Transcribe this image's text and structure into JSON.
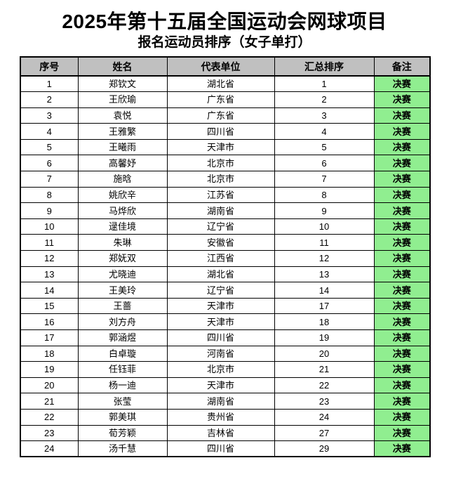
{
  "page": {
    "title": "2025年第十五届全国运动会网球项目",
    "subtitle": "报名运动员排序（女子单打）"
  },
  "table": {
    "headers": [
      "序号",
      "姓名",
      "代表单位",
      "汇总排序",
      "备注"
    ],
    "rows": [
      {
        "no": "1",
        "name": "郑钦文",
        "unit": "湖北省",
        "rank": "1",
        "remark": "决赛"
      },
      {
        "no": "2",
        "name": "王欣瑜",
        "unit": "广东省",
        "rank": "2",
        "remark": "决赛"
      },
      {
        "no": "3",
        "name": "袁悦",
        "unit": "广东省",
        "rank": "3",
        "remark": "决赛"
      },
      {
        "no": "4",
        "name": "王雅繁",
        "unit": "四川省",
        "rank": "4",
        "remark": "决赛"
      },
      {
        "no": "5",
        "name": "王曦雨",
        "unit": "天津市",
        "rank": "5",
        "remark": "决赛"
      },
      {
        "no": "6",
        "name": "高馨妤",
        "unit": "北京市",
        "rank": "6",
        "remark": "决赛"
      },
      {
        "no": "7",
        "name": "施晗",
        "unit": "北京市",
        "rank": "7",
        "remark": "决赛"
      },
      {
        "no": "8",
        "name": "姚欣辛",
        "unit": "江苏省",
        "rank": "8",
        "remark": "决赛"
      },
      {
        "no": "9",
        "name": "马烨欣",
        "unit": "湖南省",
        "rank": "9",
        "remark": "决赛"
      },
      {
        "no": "10",
        "name": "逯佳境",
        "unit": "辽宁省",
        "rank": "10",
        "remark": "决赛"
      },
      {
        "no": "11",
        "name": "朱琳",
        "unit": "安徽省",
        "rank": "11",
        "remark": "决赛"
      },
      {
        "no": "12",
        "name": "郑妩双",
        "unit": "江西省",
        "rank": "12",
        "remark": "决赛"
      },
      {
        "no": "13",
        "name": "尤晓迪",
        "unit": "湖北省",
        "rank": "13",
        "remark": "决赛"
      },
      {
        "no": "14",
        "name": "王美玲",
        "unit": "辽宁省",
        "rank": "14",
        "remark": "决赛"
      },
      {
        "no": "15",
        "name": "王蔷",
        "unit": "天津市",
        "rank": "17",
        "remark": "决赛"
      },
      {
        "no": "16",
        "name": "刘方舟",
        "unit": "天津市",
        "rank": "18",
        "remark": "决赛"
      },
      {
        "no": "17",
        "name": "郭涵煜",
        "unit": "四川省",
        "rank": "19",
        "remark": "决赛"
      },
      {
        "no": "18",
        "name": "白卓璇",
        "unit": "河南省",
        "rank": "20",
        "remark": "决赛"
      },
      {
        "no": "19",
        "name": "任钰菲",
        "unit": "北京市",
        "rank": "21",
        "remark": "决赛"
      },
      {
        "no": "20",
        "name": "杨一迪",
        "unit": "天津市",
        "rank": "22",
        "remark": "决赛"
      },
      {
        "no": "21",
        "name": "张莹",
        "unit": "湖南省",
        "rank": "23",
        "remark": "决赛"
      },
      {
        "no": "22",
        "name": "郭美琪",
        "unit": "贵州省",
        "rank": "24",
        "remark": "决赛"
      },
      {
        "no": "23",
        "name": "荀芳颖",
        "unit": "吉林省",
        "rank": "27",
        "remark": "决赛"
      },
      {
        "no": "24",
        "name": "汤千慧",
        "unit": "四川省",
        "rank": "29",
        "remark": "决赛"
      }
    ]
  },
  "colors": {
    "header_bg": "#c0c0c0",
    "remark_bg": "#90ee90",
    "border": "#000000",
    "text": "#000000"
  }
}
